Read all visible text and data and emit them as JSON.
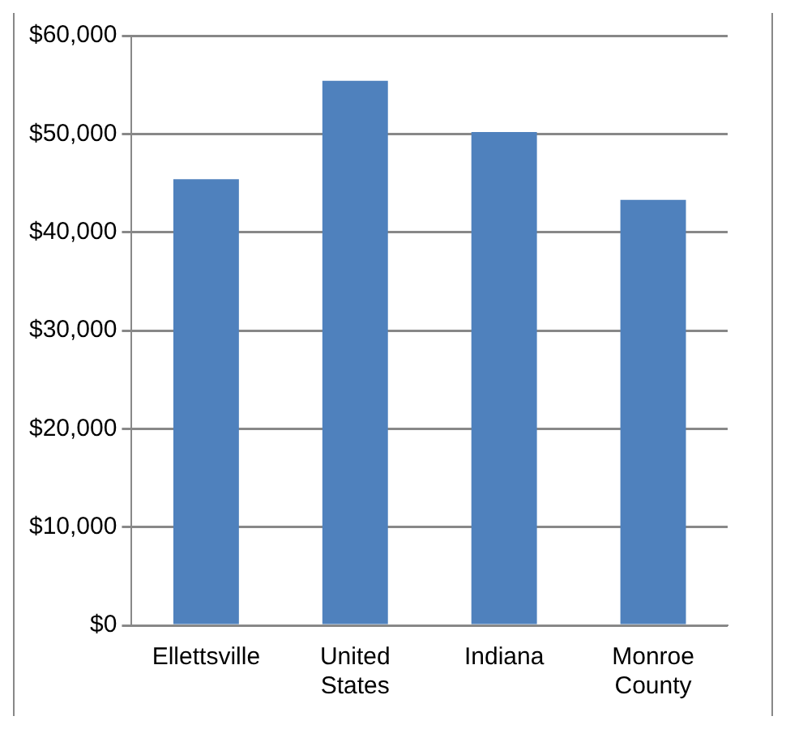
{
  "chart_data": {
    "type": "bar",
    "categories": [
      "Ellettsville",
      "United States",
      "Indiana",
      "Monroe County"
    ],
    "values": [
      45400,
      55400,
      50200,
      43300
    ],
    "color": "#4f81bd",
    "ylim": [
      0,
      60000
    ],
    "yticks": [
      {
        "value": 0,
        "label": "$0"
      },
      {
        "value": 10000,
        "label": "$10,000"
      },
      {
        "value": 20000,
        "label": "$20,000"
      },
      {
        "value": 30000,
        "label": "$30,000"
      },
      {
        "value": 40000,
        "label": "$40,000"
      },
      {
        "value": 50000,
        "label": "$50,000"
      },
      {
        "value": 60000,
        "label": "$60,000"
      }
    ],
    "grid": "y",
    "legend": false
  }
}
